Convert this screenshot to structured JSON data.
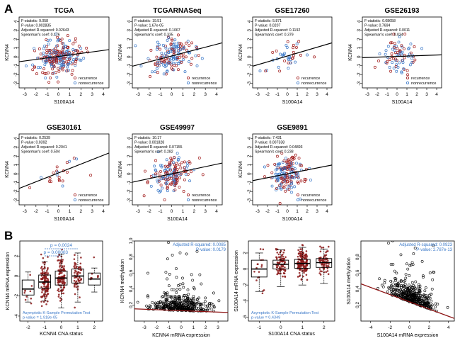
{
  "panel_labels": {
    "a": "A",
    "b": "B"
  },
  "colors": {
    "recurrence": "#a01818",
    "nonrecurrence": "#3a78c8",
    "fitline": "#000000",
    "red_line": "#8b1010",
    "blue_text": "#3a78c8",
    "dark_red_points": "#8b1a1a"
  },
  "chart_data": [
    {
      "type": "scatter",
      "id": "tcga",
      "title": "TCGA",
      "xlabel": "S100A14",
      "ylabel": "KCNN4",
      "xlim": [
        -3.5,
        4.5
      ],
      "ylim": [
        -3.5,
        4.5
      ],
      "xticks": [
        "-3",
        "-2",
        "-1",
        "0",
        "1",
        "2",
        "3",
        "4"
      ],
      "yticks": [
        "-3",
        "-2",
        "-1",
        "0",
        "1",
        "2",
        "3",
        "4"
      ],
      "stats": [
        "F-statistic: 9.058",
        "P-value: 0.002835",
        "Adjusted R-squared: 0.02643",
        "Spearman's coef: 0.176"
      ],
      "legend": [
        "recurrence",
        "nonrecurrence"
      ],
      "fit": {
        "intercept": 0.05,
        "slope": 0.17
      },
      "n_points": 240,
      "spread": 1.0
    },
    {
      "type": "scatter",
      "id": "tcgarnaseq",
      "title": "TCGARNASeq",
      "xlabel": "",
      "ylabel": "KCNN4",
      "xlim": [
        -3.5,
        4.5
      ],
      "ylim": [
        -3.5,
        4.5
      ],
      "xticks": [
        "-3",
        "-2",
        "-1",
        "0",
        "1",
        "2",
        "3",
        "4"
      ],
      "yticks": [
        "-3",
        "-2",
        "-1",
        "0",
        "1",
        "2",
        "3",
        "4"
      ],
      "stats": [
        "F-statistic: 19.51",
        "P-value: 1.67e-05",
        "Adjusted R-squared: 0.1067",
        "Spearman's coef: 0.335"
      ],
      "legend": [
        "recurrence",
        "nonrecurrence"
      ],
      "fit": {
        "intercept": 0.1,
        "slope": 0.33
      },
      "n_points": 160,
      "spread": 1.0
    },
    {
      "type": "scatter",
      "id": "gse17260",
      "title": "GSE17260",
      "xlabel": "S100A14",
      "ylabel": "KCNN4",
      "xlim": [
        -3.5,
        4.5
      ],
      "ylim": [
        -3.5,
        4.5
      ],
      "xticks": [
        "-3",
        "-2",
        "-1",
        "0",
        "1",
        "2",
        "3",
        "4"
      ],
      "yticks": [
        "-3",
        "-2",
        "-1",
        "0",
        "1",
        "2",
        "3",
        "4"
      ],
      "stats": [
        "F-statistic: 5.871",
        "P-value: 0.0207",
        "Adjusted R-squared: 0.1192",
        "Spearman's coef: 0.379"
      ],
      "legend": [
        "recurrence",
        "nonrecurrence"
      ],
      "fit": {
        "intercept": 0.1,
        "slope": 0.33
      },
      "n_points": 40,
      "spread": 0.8
    },
    {
      "type": "scatter",
      "id": "gse26193",
      "title": "GSE26193",
      "xlabel": "S100A14",
      "ylabel": "KCNN4",
      "xlim": [
        -3.5,
        4.5
      ],
      "ylim": [
        -3.5,
        4.5
      ],
      "xticks": [
        "-3",
        "-2",
        "-1",
        "0",
        "1",
        "2",
        "3",
        "4"
      ],
      "yticks": [
        "-3",
        "-2",
        "-1",
        "0",
        "1",
        "2",
        "3",
        "4"
      ],
      "stats": [
        "F-statistic: 0.08658",
        "P-value: 0.7694",
        "Adjusted R-squared: 0.0011",
        "Spearman's coef: 0.034"
      ],
      "legend": [
        "recurrence",
        "nonrecurrence"
      ],
      "fit": {
        "intercept": 0.05,
        "slope": 0.04
      },
      "n_points": 80,
      "spread": 0.9
    },
    {
      "type": "scatter",
      "id": "gse30161",
      "title": "GSE30161",
      "xlabel": "S100A14",
      "ylabel": "KCNN4",
      "xlim": [
        -3.5,
        4.5
      ],
      "ylim": [
        -3.5,
        4.5
      ],
      "xticks": [
        "-3",
        "-2",
        "-1",
        "0",
        "1",
        "2",
        "3",
        "4"
      ],
      "yticks": [
        "-3",
        "-2",
        "-1",
        "0",
        "1",
        "2",
        "3",
        "4"
      ],
      "stats": [
        "F-statistic: 0.2539",
        "P-value: 0.0392",
        "Adjusted R-squared: 0.2041",
        "Spearman's coef: 0.504"
      ],
      "legend": [
        "recurrence",
        "nonrecurrence"
      ],
      "fit": {
        "intercept": 0.1,
        "slope": 0.5
      },
      "n_points": 22,
      "spread": 0.7
    },
    {
      "type": "scatter",
      "id": "gse49997",
      "title": "GSE49997",
      "xlabel": "S100A14",
      "ylabel": "KCNN4",
      "xlim": [
        -3.5,
        4.5
      ],
      "ylim": [
        -3.5,
        4.5
      ],
      "xticks": [
        "-3",
        "-2",
        "-1",
        "0",
        "1",
        "2",
        "3",
        "4"
      ],
      "yticks": [
        "-3",
        "-2",
        "-1",
        "0",
        "1",
        "2",
        "3",
        "4"
      ],
      "stats": [
        "F-statistic: 10.17",
        "P-value: 0.001828",
        "Adjusted R-squared: 0.07155",
        "Spearman's coef: 0.282"
      ],
      "legend": [
        "recurrence",
        "nonrecurrence"
      ],
      "fit": {
        "intercept": 0.0,
        "slope": 0.27
      },
      "n_points": 160,
      "spread": 1.0
    },
    {
      "type": "scatter",
      "id": "gse9891",
      "title": "GSE9891",
      "xlabel": "S100A14",
      "ylabel": "KCNN4",
      "xlim": [
        -3.5,
        4.5
      ],
      "ylim": [
        -3.5,
        4.5
      ],
      "xticks": [
        "-3",
        "-2",
        "-1",
        "0",
        "1",
        "2",
        "3",
        "4"
      ],
      "yticks": [
        "-3",
        "-2",
        "-1",
        "0",
        "1",
        "2",
        "3",
        "4"
      ],
      "stats": [
        "F-statistic: 7.431",
        "P-value: 0.007338",
        "Adjusted R-squared: 0.04893",
        "Spearman's coef: 0.238"
      ],
      "legend": [
        "recurrence",
        "nonrecurrence"
      ],
      "fit": {
        "intercept": 0.0,
        "slope": 0.22
      },
      "n_points": 170,
      "spread": 1.0
    },
    {
      "type": "boxplot",
      "id": "kcnn4_cna",
      "xlabel": "KCNN4 CNA status",
      "ylabel": "KCNN4 mRNA expression",
      "categories": [
        "-2",
        "-1",
        "0",
        "1",
        "2"
      ],
      "xticks": [
        "-2",
        "-1",
        "0",
        "1",
        "2"
      ],
      "ylim": [
        -4.5,
        3.5
      ],
      "yticks": [
        "-4",
        "-2",
        "0",
        "2"
      ],
      "boxes": [
        {
          "q1": -1.9,
          "median": -1.3,
          "q3": -0.4,
          "lo": -2.6,
          "hi": 0.4,
          "n": 10
        },
        {
          "q1": -1.2,
          "median": -0.6,
          "q3": 0.1,
          "lo": -2.5,
          "hi": 1.4,
          "n": 120
        },
        {
          "q1": -0.9,
          "median": -0.2,
          "q3": 0.5,
          "lo": -3.2,
          "hi": 2.2,
          "n": 110
        },
        {
          "q1": -0.7,
          "median": 0.0,
          "q3": 0.7,
          "lo": -2.6,
          "hi": 2.3,
          "n": 60
        },
        {
          "q1": -0.9,
          "median": -0.3,
          "q3": 0.3,
          "lo": -1.6,
          "hi": 0.8,
          "n": 8
        }
      ],
      "annotations": [
        "p = 0.0024",
        "p = 0.00003"
      ],
      "test_text": [
        "Asymptotic K-Sample Permutation Test",
        "p-value = 1.918e-05"
      ]
    },
    {
      "type": "scatter",
      "id": "kcnn4_methylation",
      "xlabel": "KCNN4 mRNA expression",
      "ylabel": "KCNN4 methylation",
      "xlim": [
        -3.8,
        3.8
      ],
      "ylim": [
        0.0,
        1.0
      ],
      "xticks": [
        "-3",
        "-2",
        "-1",
        "0",
        "1",
        "2",
        "3"
      ],
      "yticks": [
        "0.2",
        "0.4",
        "0.6",
        "0.8",
        "1.0"
      ],
      "stats": [
        "Adjusted R-squared: 0.0085",
        "P-value: 0.0179"
      ],
      "fit": {
        "intercept": 0.13,
        "slope": -0.006
      },
      "n_points": 380,
      "spread": 0.12
    },
    {
      "type": "boxplot",
      "id": "s100a14_cna",
      "xlabel": "S100A14 CNA status",
      "ylabel": "S100A14 mRNA expression",
      "categories": [
        "-1",
        "0",
        "1",
        "2"
      ],
      "xticks": [
        "-1",
        "0",
        "1",
        "2"
      ],
      "ylim": [
        -6.5,
        3.5
      ],
      "yticks": [
        "-6",
        "-4",
        "-2",
        "0",
        "2"
      ],
      "boxes": [
        {
          "q1": -1.0,
          "median": 0.0,
          "q3": 1.1,
          "lo": -2.8,
          "hi": 2.0,
          "n": 18
        },
        {
          "q1": 0.0,
          "median": 0.6,
          "q3": 1.1,
          "lo": -2.2,
          "hi": 2.4,
          "n": 80
        },
        {
          "q1": 0.1,
          "median": 0.7,
          "q3": 1.2,
          "lo": -2.0,
          "hi": 2.7,
          "n": 150
        },
        {
          "q1": 0.2,
          "median": 0.8,
          "q3": 1.3,
          "lo": -1.8,
          "hi": 2.5,
          "n": 70
        }
      ],
      "test_text": [
        "Asymptotic K-Sample Permutation Test",
        "p-value = 0.4349"
      ]
    },
    {
      "type": "scatter",
      "id": "s100a14_methylation",
      "xlabel": "S100A14 mRNA expression",
      "ylabel": "S100A14 methylation",
      "xlim": [
        -5.0,
        4.6
      ],
      "ylim": [
        0.0,
        1.0
      ],
      "xticks": [
        "-4",
        "-2",
        "0",
        "2",
        "4"
      ],
      "yticks": [
        "0.2",
        "0.4",
        "0.6",
        "0.8"
      ],
      "stats": [
        "Adjusted R-squared: 0.0923",
        "P-value: 2.787e-13"
      ],
      "fit": {
        "intercept": 0.24,
        "slope": -0.045
      },
      "n_points": 420,
      "spread": 0.13
    }
  ]
}
